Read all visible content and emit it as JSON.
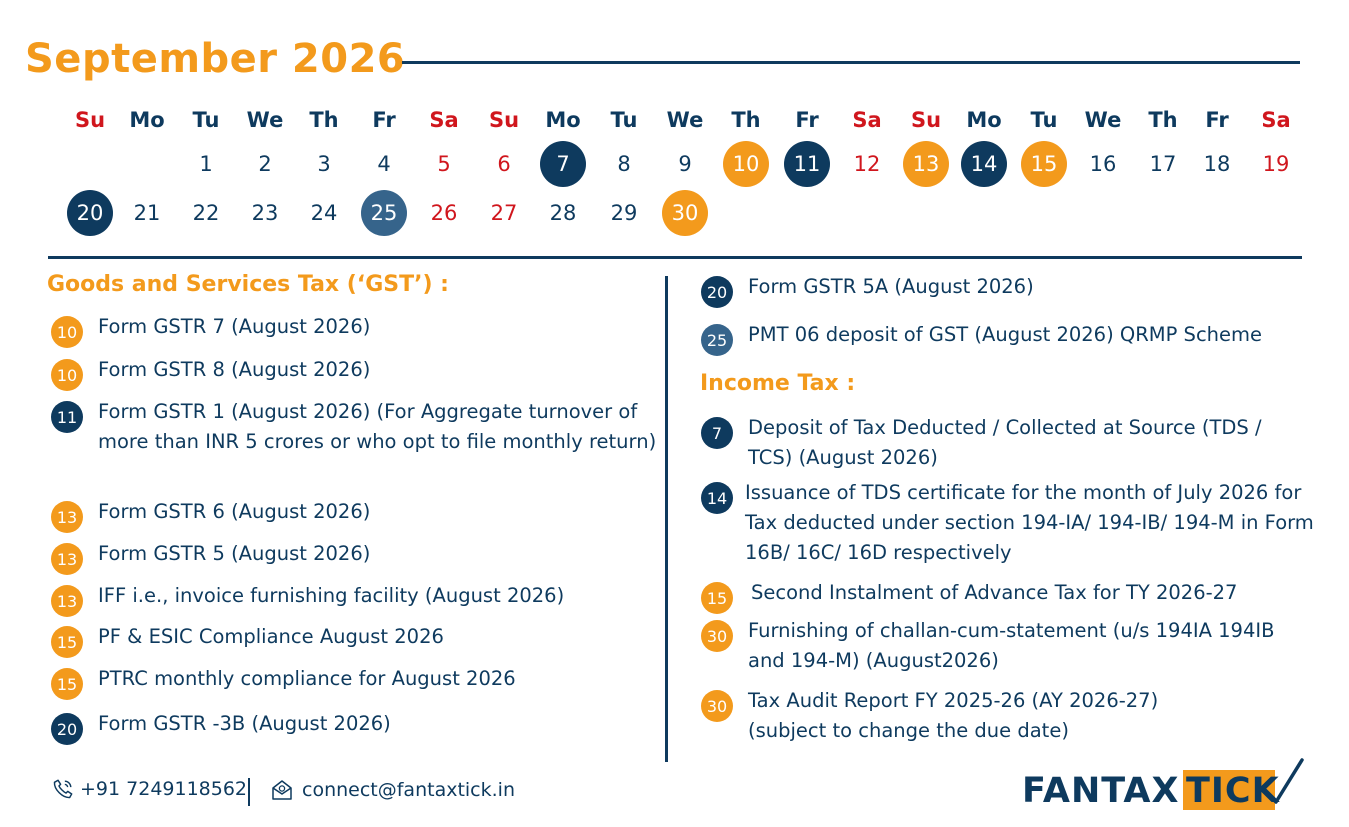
{
  "header": {
    "title": "September 2026"
  },
  "colors": {
    "orange": "#f39a1c",
    "navy": "#0e3a5e",
    "slate": "#36648b",
    "red": "#d0161d"
  },
  "calendar": {
    "weekdays": [
      "Su",
      "Mo",
      "Tu",
      "We",
      "Th",
      "Fr",
      "Sa",
      "Su",
      "Mo",
      "Tu",
      "We",
      "Th",
      "Fr",
      "Sa",
      "Su",
      "Mo",
      "Tu",
      "We",
      "Th",
      "Fr",
      "Sa"
    ],
    "days": [
      "1",
      "2",
      "3",
      "4",
      "5",
      "6",
      "7",
      "8",
      "9",
      "10",
      "11",
      "12",
      "13",
      "14",
      "15",
      "16",
      "17",
      "18",
      "19",
      "20",
      "21",
      "22",
      "23",
      "24",
      "25",
      "26",
      "27",
      "28",
      "29",
      "30"
    ]
  },
  "gst": {
    "title": "Goods and Services Tax (‘GST’) :",
    "items": [
      {
        "day": "10",
        "text": "Form GSTR 7 (August 2026)"
      },
      {
        "day": "10",
        "text": "Form GSTR 8 (August 2026)"
      },
      {
        "day": "11",
        "text": "Form GSTR 1 (August 2026) (For Aggregate turnover of more than INR 5 crores or who opt to file monthly return)"
      },
      {
        "day": "13",
        "text": "Form GSTR 6 (August 2026)"
      },
      {
        "day": "13",
        "text": "Form GSTR 5 (August 2026)"
      },
      {
        "day": "13",
        "text": "IFF i.e., invoice furnishing facility (August 2026)"
      },
      {
        "day": "15",
        "text": "PF & ESIC Compliance August 2026"
      },
      {
        "day": "15",
        "text": "PTRC monthly compliance for August 2026"
      },
      {
        "day": "20",
        "text": "Form GSTR -3B (August 2026)"
      },
      {
        "day": "20",
        "text": "Form GSTR 5A (August 2026)"
      },
      {
        "day": "25",
        "text": "PMT 06 deposit of GST (August 2026) QRMP Scheme"
      }
    ]
  },
  "income_tax": {
    "title": "Income Tax :",
    "items": [
      {
        "day": "7",
        "text": "Deposit of Tax Deducted / Collected at Source (TDS / TCS) (August 2026)"
      },
      {
        "day": "14",
        "text": "Issuance of TDS certificate for the month of July 2026 for Tax deducted under section 194-IA/ 194-IB/ 194-M in Form 16B/ 16C/ 16D respectively"
      },
      {
        "day": "15",
        "text": "Second Instalment of Advance Tax for TY 2026-27"
      },
      {
        "day": "30",
        "text": "Furnishing of challan-cum-statement (u/s 194IA 194IB and 194-M) (August2026)"
      },
      {
        "day": "30",
        "text": "Tax Audit Report FY 2025-26 (AY 2026-27) (subject to change the due date)"
      }
    ]
  },
  "footer": {
    "phone": "+91 7249118562",
    "email": "connect@fantaxtick.in",
    "phone_icon": "phone-icon",
    "email_icon": "email-icon"
  },
  "logo": {
    "part1": "FANTAX",
    "part2": "TICK"
  }
}
